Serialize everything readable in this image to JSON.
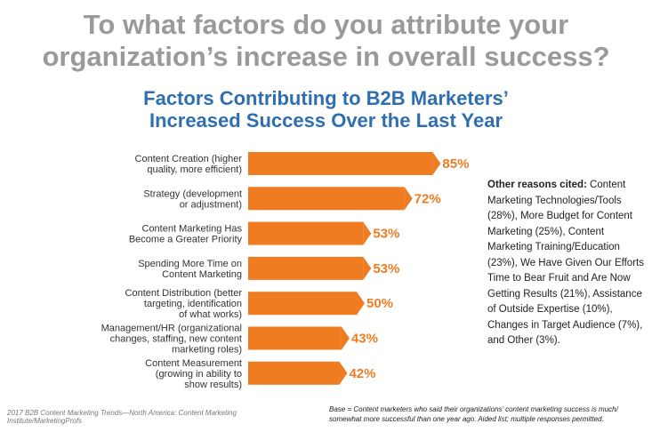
{
  "headline": {
    "line1": "To what factors do you attribute your",
    "line2": "organization’s increase in overall success?"
  },
  "chart_data": {
    "type": "bar",
    "orientation": "horizontal",
    "title_line1": "Factors Contributing to B2B Marketers’",
    "title_line2": "Increased Success Over the Last Year",
    "categories": [
      [
        "Content Creation (higher",
        "quality, more efficient)"
      ],
      [
        "Strategy (development",
        "or adjustment)"
      ],
      [
        "Content Marketing Has",
        "Become a Greater Priority"
      ],
      [
        "Spending More Time on",
        "Content Marketing"
      ],
      [
        "Content Distribution (better",
        "targeting, identification",
        "of what works)"
      ],
      [
        "Management/HR (organizational",
        "changes, staffing, new content",
        "marketing roles)"
      ],
      [
        "Content Measurement",
        "(growing in ability to",
        "show results)"
      ]
    ],
    "values": [
      85,
      72,
      53,
      53,
      50,
      43,
      42
    ],
    "value_labels": [
      "85%",
      "72%",
      "53%",
      "53%",
      "50%",
      "43%",
      "42%"
    ],
    "xlim": [
      0,
      100
    ],
    "grid": false,
    "bar_color": "#f07c22",
    "value_label_color": "#f07c22"
  },
  "side_note": {
    "lead": "Other reasons cited:",
    "text": " Content Marketing Technologies/Tools (28%), More Budget for Content Marketing (25%), Content Marketing Training/Education (23%), We Have Given Our Efforts Time to Bear Fruit and Are Now Getting Results (21%), Assistance of Outside Expertise (10%), Changes in Target Audience (7%), and Other (3%)."
  },
  "footer": {
    "source": "2017 B2B Content Marketing Trends—North America: Content Marketing Institute/MarketingProfs",
    "base_line1": "Base = Content marketers who said their organizations’ content marketing success is much/",
    "base_line2": "somewhat more successful than one year ago. Aided list; multiple responses permitted."
  },
  "colors": {
    "headline": "#9a9a9a",
    "chart_title": "#2f6fb0",
    "bar": "#f07c22"
  }
}
